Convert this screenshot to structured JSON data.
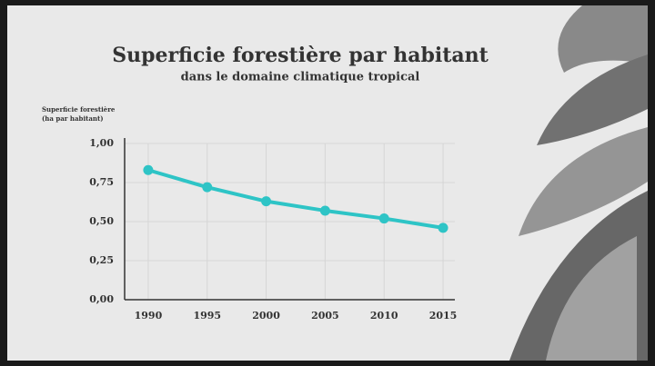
{
  "chart_data": {
    "type": "line",
    "title": "Superficie forestière par habitant",
    "subtitle": "dans le domaine climatique tropical",
    "ylabel": [
      "Superficie forestière",
      "(ha par habitant)"
    ],
    "x": [
      1990,
      1995,
      2000,
      2005,
      2010,
      2015
    ],
    "values": [
      0.83,
      0.72,
      0.63,
      0.57,
      0.52,
      0.46
    ],
    "color": "#2ec4c6",
    "xlim": [
      1988,
      2016
    ],
    "xticks": [
      1990,
      1995,
      2000,
      2005,
      2010,
      2015
    ],
    "ylim": [
      0,
      1
    ],
    "yticks": [
      {
        "value": 0,
        "label": "0,00"
      },
      {
        "value": 0.25,
        "label": "0,25"
      },
      {
        "value": 0.5,
        "label": "0,50"
      },
      {
        "value": 0.75,
        "label": "0,75"
      },
      {
        "value": 1,
        "label": "1,00"
      }
    ],
    "grid": true
  }
}
